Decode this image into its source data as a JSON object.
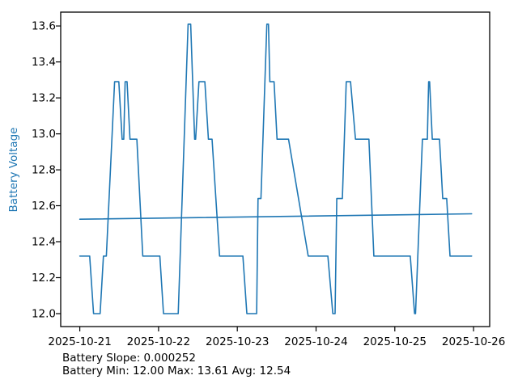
{
  "chart_data": {
    "type": "line",
    "ylabel": "Battery Voltage",
    "x_tick_labels": [
      "2025-10-21",
      "2025-10-22",
      "2025-10-23",
      "2025-10-24",
      "2025-10-25",
      "2025-10-26"
    ],
    "x_tick_days": [
      0,
      1,
      2,
      3,
      4,
      5
    ],
    "y_tick_labels": [
      "12.0",
      "12.2",
      "12.4",
      "12.6",
      "12.8",
      "13.0",
      "13.2",
      "13.4",
      "13.6"
    ],
    "y_tick_values": [
      12.0,
      12.2,
      12.4,
      12.6,
      12.8,
      13.0,
      13.2,
      13.4,
      13.6
    ],
    "xlim_days": [
      -0.2425,
      5.204
    ],
    "ylim_volts": [
      11.928,
      13.677
    ],
    "grid": false,
    "legend": "none",
    "colors": {
      "series": "#1f77b4",
      "trend": "#1f77b4",
      "ylabel": "#1f77b4",
      "axis": "#000000",
      "text": "#000000",
      "background": "#ffffff"
    },
    "series": [
      {
        "name": "battery-voltage-line",
        "points_hours_volts": [
          [
            0.0,
            12.32
          ],
          [
            3.0,
            12.32
          ],
          [
            4.2,
            12.0
          ],
          [
            6.2,
            12.0
          ],
          [
            7.2,
            12.32
          ],
          [
            8.1,
            12.32
          ],
          [
            10.6,
            13.29
          ],
          [
            11.9,
            13.29
          ],
          [
            12.9,
            12.97
          ],
          [
            13.4,
            12.97
          ],
          [
            13.8,
            13.29
          ],
          [
            14.4,
            13.29
          ],
          [
            15.3,
            12.97
          ],
          [
            17.4,
            12.97
          ],
          [
            19.2,
            12.32
          ],
          [
            24.4,
            12.32
          ],
          [
            25.5,
            12.0
          ],
          [
            30.0,
            12.0
          ],
          [
            33.0,
            13.61
          ],
          [
            33.8,
            13.61
          ],
          [
            35.0,
            12.97
          ],
          [
            35.3,
            12.97
          ],
          [
            36.3,
            13.29
          ],
          [
            38.1,
            13.29
          ],
          [
            39.2,
            12.97
          ],
          [
            40.3,
            12.97
          ],
          [
            42.6,
            12.32
          ],
          [
            49.7,
            12.32
          ],
          [
            50.9,
            12.0
          ],
          [
            53.9,
            12.0
          ],
          [
            54.3,
            12.64
          ],
          [
            55.2,
            12.64
          ],
          [
            57.0,
            13.61
          ],
          [
            57.5,
            13.61
          ],
          [
            57.9,
            13.29
          ],
          [
            59.2,
            13.29
          ],
          [
            60.1,
            12.97
          ],
          [
            63.6,
            12.97
          ],
          [
            69.6,
            12.32
          ],
          [
            75.6,
            12.32
          ],
          [
            77.1,
            12.0
          ],
          [
            77.8,
            12.0
          ],
          [
            78.3,
            12.64
          ],
          [
            80.0,
            12.64
          ],
          [
            81.2,
            13.29
          ],
          [
            82.5,
            13.29
          ],
          [
            84.0,
            12.97
          ],
          [
            88.1,
            12.97
          ],
          [
            89.6,
            12.32
          ],
          [
            100.7,
            12.32
          ],
          [
            102.0,
            12.0
          ],
          [
            102.3,
            12.0
          ],
          [
            104.4,
            12.97
          ],
          [
            105.9,
            12.97
          ],
          [
            106.3,
            13.29
          ],
          [
            106.6,
            13.29
          ],
          [
            107.4,
            12.97
          ],
          [
            109.6,
            12.97
          ],
          [
            110.6,
            12.64
          ],
          [
            111.8,
            12.64
          ],
          [
            112.8,
            12.32
          ],
          [
            119.4,
            12.32
          ]
        ]
      },
      {
        "name": "trend-line",
        "points_hours_volts": [
          [
            0.0,
            12.525
          ],
          [
            119.4,
            12.555
          ]
        ]
      }
    ],
    "annotations": [
      "Battery Slope: 0.000252",
      "Battery Min: 12.00 Max: 13.61 Avg: 12.54"
    ],
    "stats": {
      "slope": "0.000252",
      "min": "12.00",
      "max": "13.61",
      "avg": "12.54"
    }
  }
}
